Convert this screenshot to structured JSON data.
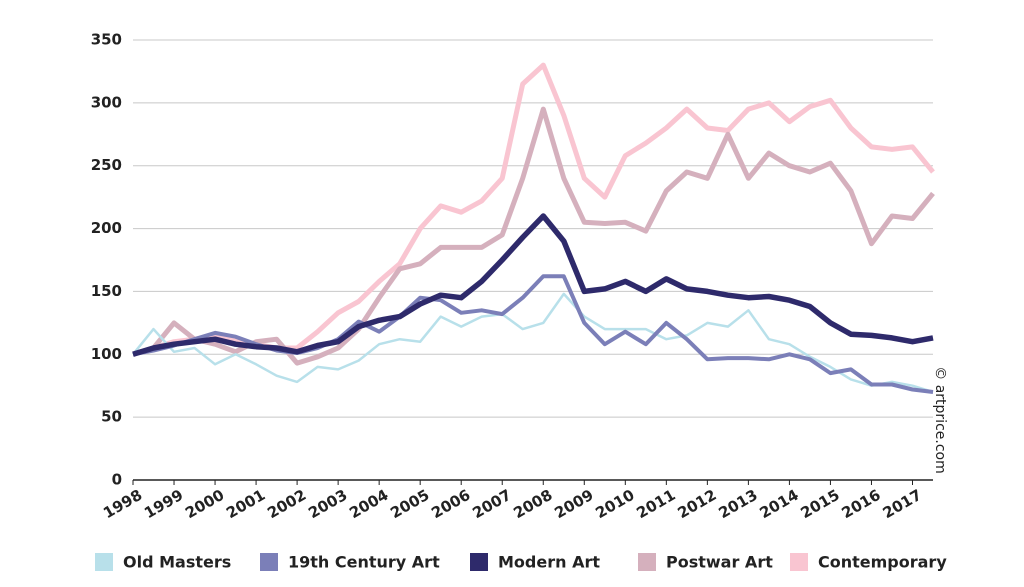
{
  "chart_data": {
    "type": "line",
    "x": [
      1998,
      1998.5,
      1999,
      1999.5,
      2000,
      2000.5,
      2001,
      2001.5,
      2002,
      2002.5,
      2003,
      2003.5,
      2004,
      2004.5,
      2005,
      2005.5,
      2006,
      2006.5,
      2007,
      2007.5,
      2008,
      2008.5,
      2009,
      2009.5,
      2010,
      2010.5,
      2011,
      2011.5,
      2012,
      2012.5,
      2013,
      2013.5,
      2014,
      2014.5,
      2015,
      2015.5,
      2016,
      2016.5,
      2017,
      2017.5
    ],
    "xlim": [
      1998,
      2017.5
    ],
    "xticks": [
      1998,
      1999,
      2000,
      2001,
      2002,
      2003,
      2004,
      2005,
      2006,
      2007,
      2008,
      2009,
      2010,
      2011,
      2012,
      2013,
      2014,
      2015,
      2016,
      2017
    ],
    "ylim": [
      0,
      350
    ],
    "yticks": [
      0,
      50,
      100,
      150,
      200,
      250,
      300,
      350
    ],
    "grid": true,
    "credit": "© artprice.com",
    "series": [
      {
        "name": "Old Masters",
        "color": "#b8e0ea",
        "values": [
          100,
          120,
          102,
          105,
          92,
          100,
          92,
          83,
          78,
          90,
          88,
          95,
          108,
          112,
          110,
          130,
          122,
          130,
          132,
          120,
          125,
          148,
          130,
          120,
          120,
          120,
          112,
          115,
          125,
          122,
          135,
          112,
          108,
          98,
          90,
          80,
          75,
          78,
          75,
          70
        ]
      },
      {
        "name": "19th Century Art",
        "color": "#7b7fb8",
        "values": [
          100,
          103,
          107,
          112,
          117,
          114,
          108,
          103,
          101,
          105,
          112,
          126,
          118,
          130,
          145,
          143,
          133,
          135,
          132,
          145,
          162,
          162,
          125,
          108,
          118,
          108,
          125,
          112,
          96,
          97,
          97,
          96,
          100,
          96,
          85,
          88,
          76,
          76,
          72,
          70
        ]
      },
      {
        "name": "Modern Art",
        "color": "#2e2a6b",
        "values": [
          100,
          105,
          108,
          110,
          112,
          108,
          106,
          105,
          102,
          107,
          110,
          122,
          127,
          130,
          140,
          147,
          145,
          158,
          175,
          193,
          210,
          190,
          150,
          152,
          158,
          150,
          160,
          152,
          150,
          147,
          145,
          146,
          143,
          138,
          125,
          116,
          115,
          113,
          110,
          113
        ]
      },
      {
        "name": "Postwar Art",
        "color": "#d5b0bd",
        "values": [
          100,
          105,
          125,
          112,
          108,
          102,
          110,
          112,
          93,
          98,
          105,
          120,
          145,
          168,
          172,
          185,
          185,
          185,
          195,
          240,
          295,
          240,
          205,
          204,
          205,
          198,
          230,
          245,
          240,
          275,
          240,
          260,
          250,
          245,
          252,
          230,
          188,
          210,
          208,
          228
        ]
      },
      {
        "name": "Contemporary",
        "color": "#f9c5d1",
        "values": [
          100,
          105,
          110,
          112,
          115,
          112,
          108,
          105,
          105,
          118,
          133,
          142,
          158,
          172,
          200,
          218,
          213,
          222,
          240,
          315,
          330,
          290,
          240,
          225,
          258,
          268,
          280,
          295,
          280,
          278,
          295,
          300,
          285,
          297,
          302,
          280,
          265,
          263,
          265,
          245
        ]
      }
    ]
  }
}
